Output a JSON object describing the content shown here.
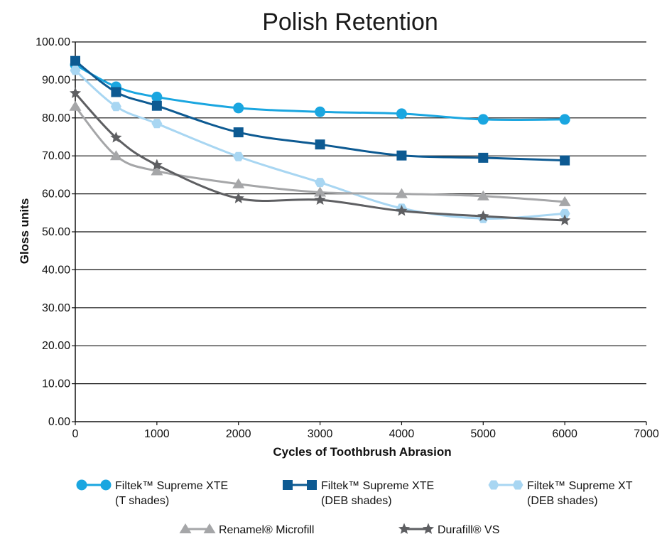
{
  "chart_data": {
    "type": "line",
    "title": "Polish Retention",
    "xlabel": "Cycles of Toothbrush Abrasion",
    "ylabel": "Gloss units",
    "xlim": [
      0,
      7000
    ],
    "ylim": [
      0,
      100
    ],
    "x_ticks": [
      "0",
      "1000",
      "2000",
      "3000",
      "4000",
      "5000",
      "6000",
      "7000"
    ],
    "y_ticks": [
      "0.00",
      "10.00",
      "20.00",
      "30.00",
      "40.00",
      "50.00",
      "60.00",
      "70.00",
      "80.00",
      "90.00",
      "100.00"
    ],
    "grid": "horizontal",
    "legend_position": "bottom",
    "series": [
      {
        "name_lines": [
          "Filtek™ Supreme XTE",
          "(T shades)"
        ],
        "color": "#1aa6e0",
        "marker": "circle",
        "x": [
          0,
          500,
          1000,
          2000,
          3000,
          4000,
          5000,
          6000
        ],
        "values": [
          94.0,
          88.2,
          85.5,
          82.6,
          81.6,
          81.1,
          79.6,
          79.6
        ]
      },
      {
        "name_lines": [
          "Filtek™ Supreme XTE",
          "(DEB shades)"
        ],
        "color": "#0d5a92",
        "marker": "square",
        "x": [
          0,
          500,
          1000,
          2000,
          3000,
          4000,
          5000,
          6000
        ],
        "values": [
          95.0,
          86.8,
          83.2,
          76.2,
          73.0,
          70.1,
          69.5,
          68.8
        ]
      },
      {
        "name_lines": [
          "Filtek™ Supreme XT",
          "(DEB shades)"
        ],
        "color": "#a8d6f2",
        "marker": "hexagon",
        "x": [
          0,
          500,
          1000,
          2000,
          3000,
          4000,
          5000,
          6000
        ],
        "values": [
          92.5,
          83.0,
          78.5,
          69.8,
          63.0,
          56.2,
          53.5,
          54.8
        ]
      },
      {
        "name_lines": [
          "Renamel® Microfill"
        ],
        "color": "#a5a6a8",
        "marker": "triangle",
        "x": [
          0,
          500,
          1000,
          2000,
          3000,
          4000,
          5000,
          6000
        ],
        "values": [
          83.0,
          70.0,
          66.0,
          62.6,
          60.4,
          60.0,
          59.4,
          57.9
        ]
      },
      {
        "name_lines": [
          "Durafill® VS"
        ],
        "color": "#5e5f62",
        "marker": "star",
        "x": [
          0,
          500,
          1000,
          2000,
          3000,
          4000,
          5000,
          6000
        ],
        "values": [
          86.5,
          74.8,
          67.6,
          58.8,
          58.4,
          55.5,
          54.1,
          53.0
        ]
      }
    ]
  }
}
